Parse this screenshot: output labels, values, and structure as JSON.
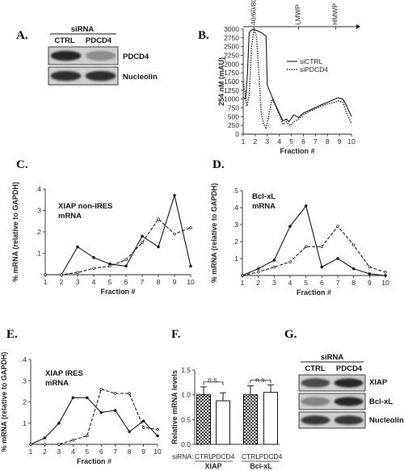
{
  "panels": {
    "A": {
      "label": "A.",
      "header": "siRNA",
      "lanes": [
        "CTRL",
        "PDCD4"
      ],
      "bands": [
        "PDCD4",
        "Nucleolin"
      ],
      "intensity": [
        [
          0.95,
          0.35
        ],
        [
          0.9,
          0.9
        ]
      ]
    },
    "B": {
      "label": "B."
    },
    "C": {
      "label": "C.",
      "annotation": [
        "XIAP non-IRES",
        "mRNA"
      ]
    },
    "D": {
      "label": "D.",
      "annotation": [
        "Bcl-xL",
        "mRNA"
      ]
    },
    "E": {
      "label": "E.",
      "annotation": [
        "XIAP IRES",
        "mRNA"
      ]
    },
    "F": {
      "label": "F.",
      "siRNA_label": "siRNA:",
      "sig": [
        "n.s.",
        "n.s."
      ],
      "lanes": [
        "CTRL",
        "PDCD4",
        "CTRL",
        "PDCD4"
      ],
      "groups": [
        "XIAP",
        "Bcl-xL"
      ]
    },
    "G": {
      "label": "G.",
      "header": "siRNA",
      "lanes": [
        "CTRL",
        "PDCD4"
      ],
      "bands": [
        "XIAP",
        "Bcl-xL",
        "Nucleolin"
      ],
      "intensity": [
        [
          0.75,
          0.95
        ],
        [
          0.4,
          0.95
        ],
        [
          0.85,
          0.85
        ]
      ]
    }
  },
  "chart_data": [
    {
      "panel": "B",
      "type": "line",
      "xlabel": "Fraction #",
      "ylabel": "254 nM (mAU)",
      "xlim": [
        1,
        10
      ],
      "ylim": [
        0,
        3000
      ],
      "xticks": [
        1,
        2,
        3,
        4,
        5,
        6,
        7,
        8,
        9,
        10
      ],
      "yticks": [
        0,
        250,
        500,
        750,
        1000,
        1250,
        1500,
        1750,
        2000,
        2250,
        2500,
        2750,
        3000
      ],
      "markers": [
        "40/60/80S",
        "LMWP",
        "HMWP"
      ],
      "marker_x": [
        1.9,
        5.6,
        8.7
      ],
      "legend": [
        "siCTRL",
        "siPDCD4"
      ],
      "legend_position": "right",
      "series": [
        {
          "name": "siCTRL",
          "style": "solid",
          "points": [
            [
              1,
              1050
            ],
            [
              1.2,
              1000
            ],
            [
              1.35,
              1700
            ],
            [
              1.5,
              2900
            ],
            [
              1.8,
              3000
            ],
            [
              2.2,
              2950
            ],
            [
              2.5,
              2900
            ],
            [
              2.9,
              2800
            ],
            [
              3.0,
              1400
            ],
            [
              3.3,
              1150
            ],
            [
              3.6,
              900
            ],
            [
              4.0,
              600
            ],
            [
              4.3,
              380
            ],
            [
              4.6,
              430
            ],
            [
              4.8,
              350
            ],
            [
              5.2,
              550
            ],
            [
              5.6,
              470
            ],
            [
              6.0,
              600
            ],
            [
              6.5,
              680
            ],
            [
              7.0,
              760
            ],
            [
              7.5,
              840
            ],
            [
              8.0,
              910
            ],
            [
              8.5,
              980
            ],
            [
              8.9,
              1040
            ],
            [
              9.3,
              1000
            ],
            [
              9.6,
              800
            ],
            [
              10,
              500
            ]
          ]
        },
        {
          "name": "siPDCD4",
          "style": "dotted",
          "points": [
            [
              1,
              1500
            ],
            [
              1.15,
              1150
            ],
            [
              1.3,
              800
            ],
            [
              1.5,
              1100
            ],
            [
              1.7,
              2500
            ],
            [
              1.9,
              3000
            ],
            [
              2.1,
              2800
            ],
            [
              2.35,
              1500
            ],
            [
              2.5,
              600
            ],
            [
              2.7,
              300
            ],
            [
              2.9,
              150
            ],
            [
              3.1,
              500
            ],
            [
              3.4,
              1000
            ],
            [
              3.7,
              800
            ],
            [
              4.0,
              550
            ],
            [
              4.3,
              280
            ],
            [
              4.6,
              350
            ],
            [
              4.9,
              240
            ],
            [
              5.2,
              350
            ],
            [
              5.6,
              430
            ],
            [
              6.0,
              550
            ],
            [
              6.5,
              650
            ],
            [
              7.0,
              720
            ],
            [
              7.5,
              800
            ],
            [
              8.0,
              860
            ],
            [
              8.5,
              900
            ],
            [
              8.9,
              950
            ],
            [
              9.3,
              900
            ],
            [
              9.6,
              600
            ],
            [
              10,
              300
            ]
          ]
        }
      ]
    },
    {
      "panel": "C",
      "type": "line",
      "xlabel": "Fraction #",
      "ylabel": "% mRNA (relative to GAPDH)",
      "xlim": [
        1,
        10
      ],
      "ylim": [
        0,
        0.4
      ],
      "xticks": [
        1,
        2,
        3,
        4,
        5,
        6,
        7,
        8,
        9,
        10
      ],
      "yticks": [
        0.1,
        0.2,
        0.3,
        0.4
      ],
      "series": [
        {
          "style": "solid",
          "x": [
            1,
            2,
            3,
            4,
            5,
            6,
            7,
            8,
            9,
            10
          ],
          "y": [
            0,
            0,
            0.13,
            0.08,
            0.05,
            0.04,
            0.18,
            0.13,
            0.37,
            0.04
          ]
        },
        {
          "style": "dashed",
          "x": [
            1,
            2,
            3,
            4,
            5,
            6,
            7,
            8,
            9,
            10
          ],
          "y": [
            0,
            0,
            0.01,
            0.03,
            0.04,
            0.07,
            0.15,
            0.26,
            0.19,
            0.22
          ]
        }
      ]
    },
    {
      "panel": "D",
      "type": "line",
      "xlabel": "Fraction #",
      "ylabel": "% mRNA (relative to GAPDH)",
      "xlim": [
        1,
        10
      ],
      "ylim": [
        0,
        0.5
      ],
      "xticks": [
        1,
        2,
        3,
        4,
        5,
        6,
        7,
        8,
        9,
        10
      ],
      "yticks": [
        0.1,
        0.2,
        0.3,
        0.4,
        0.5
      ],
      "series": [
        {
          "style": "solid",
          "x": [
            1,
            2,
            3,
            4,
            5,
            6,
            7,
            8,
            9,
            10
          ],
          "y": [
            0,
            0.04,
            0.09,
            0.29,
            0.41,
            0.05,
            0.1,
            0.04,
            0.01,
            0
          ]
        },
        {
          "style": "dashed",
          "x": [
            1,
            2,
            3,
            4,
            5,
            6,
            7,
            8,
            9,
            10
          ],
          "y": [
            0,
            0.02,
            0.05,
            0.08,
            0.17,
            0.17,
            0.29,
            0.18,
            0.05,
            0.02
          ]
        }
      ]
    },
    {
      "panel": "E",
      "type": "line",
      "xlabel": "Fraction #",
      "ylabel": "% mRNA (relative to GAPDH)",
      "xlim": [
        1,
        10
      ],
      "ylim": [
        0,
        0.4
      ],
      "xticks": [
        1,
        2,
        3,
        4,
        5,
        6,
        7,
        8,
        9,
        10
      ],
      "yticks": [
        0.1,
        0.2,
        0.3,
        0.4
      ],
      "series": [
        {
          "style": "solid",
          "x": [
            1,
            2,
            3,
            4,
            5,
            6,
            7,
            8,
            9,
            10
          ],
          "y": [
            0,
            0.03,
            0.1,
            0.22,
            0.22,
            0.15,
            0.16,
            0.06,
            0.11,
            0.04
          ]
        },
        {
          "style": "dashed",
          "x": [
            1,
            2,
            3,
            4,
            5,
            6,
            7,
            8,
            9,
            10
          ],
          "y": [
            0,
            0,
            0,
            0.02,
            0.04,
            0.26,
            0.24,
            0.24,
            0.08,
            0.07
          ]
        }
      ]
    },
    {
      "panel": "F",
      "type": "bar",
      "ylabel": "Relative mRNA levels",
      "ylim": [
        0,
        1.5
      ],
      "yticks": [
        0.0,
        0.5,
        1.0,
        1.5
      ],
      "categories": [
        "CTRL",
        "PDCD4",
        "CTRL",
        "PDCD4"
      ],
      "values": [
        1.0,
        0.88,
        1.0,
        1.05
      ],
      "errors": [
        0.16,
        0.16,
        0.18,
        0.15
      ],
      "fills": [
        "hatched",
        "white",
        "hatched",
        "white"
      ]
    }
  ]
}
